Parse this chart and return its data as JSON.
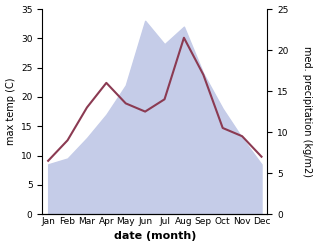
{
  "months": [
    "Jan",
    "Feb",
    "Mar",
    "Apr",
    "May",
    "Jun",
    "Jul",
    "Aug",
    "Sep",
    "Oct",
    "Nov",
    "Dec"
  ],
  "temp": [
    8.5,
    9.5,
    13.0,
    17.0,
    22.0,
    33.0,
    29.0,
    32.0,
    24.0,
    18.0,
    13.0,
    8.5
  ],
  "precip": [
    6.5,
    9.0,
    13.0,
    16.0,
    13.5,
    12.5,
    14.0,
    21.5,
    17.0,
    10.5,
    9.5,
    7.0
  ],
  "precip_color": "#8b3a52",
  "temp_fill_color": "#c5cce8",
  "ylim_temp": [
    0,
    35
  ],
  "ylim_precip": [
    0,
    25
  ],
  "yticks_temp": [
    0,
    5,
    10,
    15,
    20,
    25,
    30,
    35
  ],
  "yticks_precip": [
    0,
    5,
    10,
    15,
    20,
    25
  ],
  "xlabel": "date (month)",
  "ylabel_left": "max temp (C)",
  "ylabel_right": "med. precipitation (kg/m2)",
  "bg_color": "#ffffff",
  "precip_linewidth": 1.5,
  "label_fontsize": 7,
  "tick_fontsize": 6.5,
  "xlabel_fontsize": 8
}
